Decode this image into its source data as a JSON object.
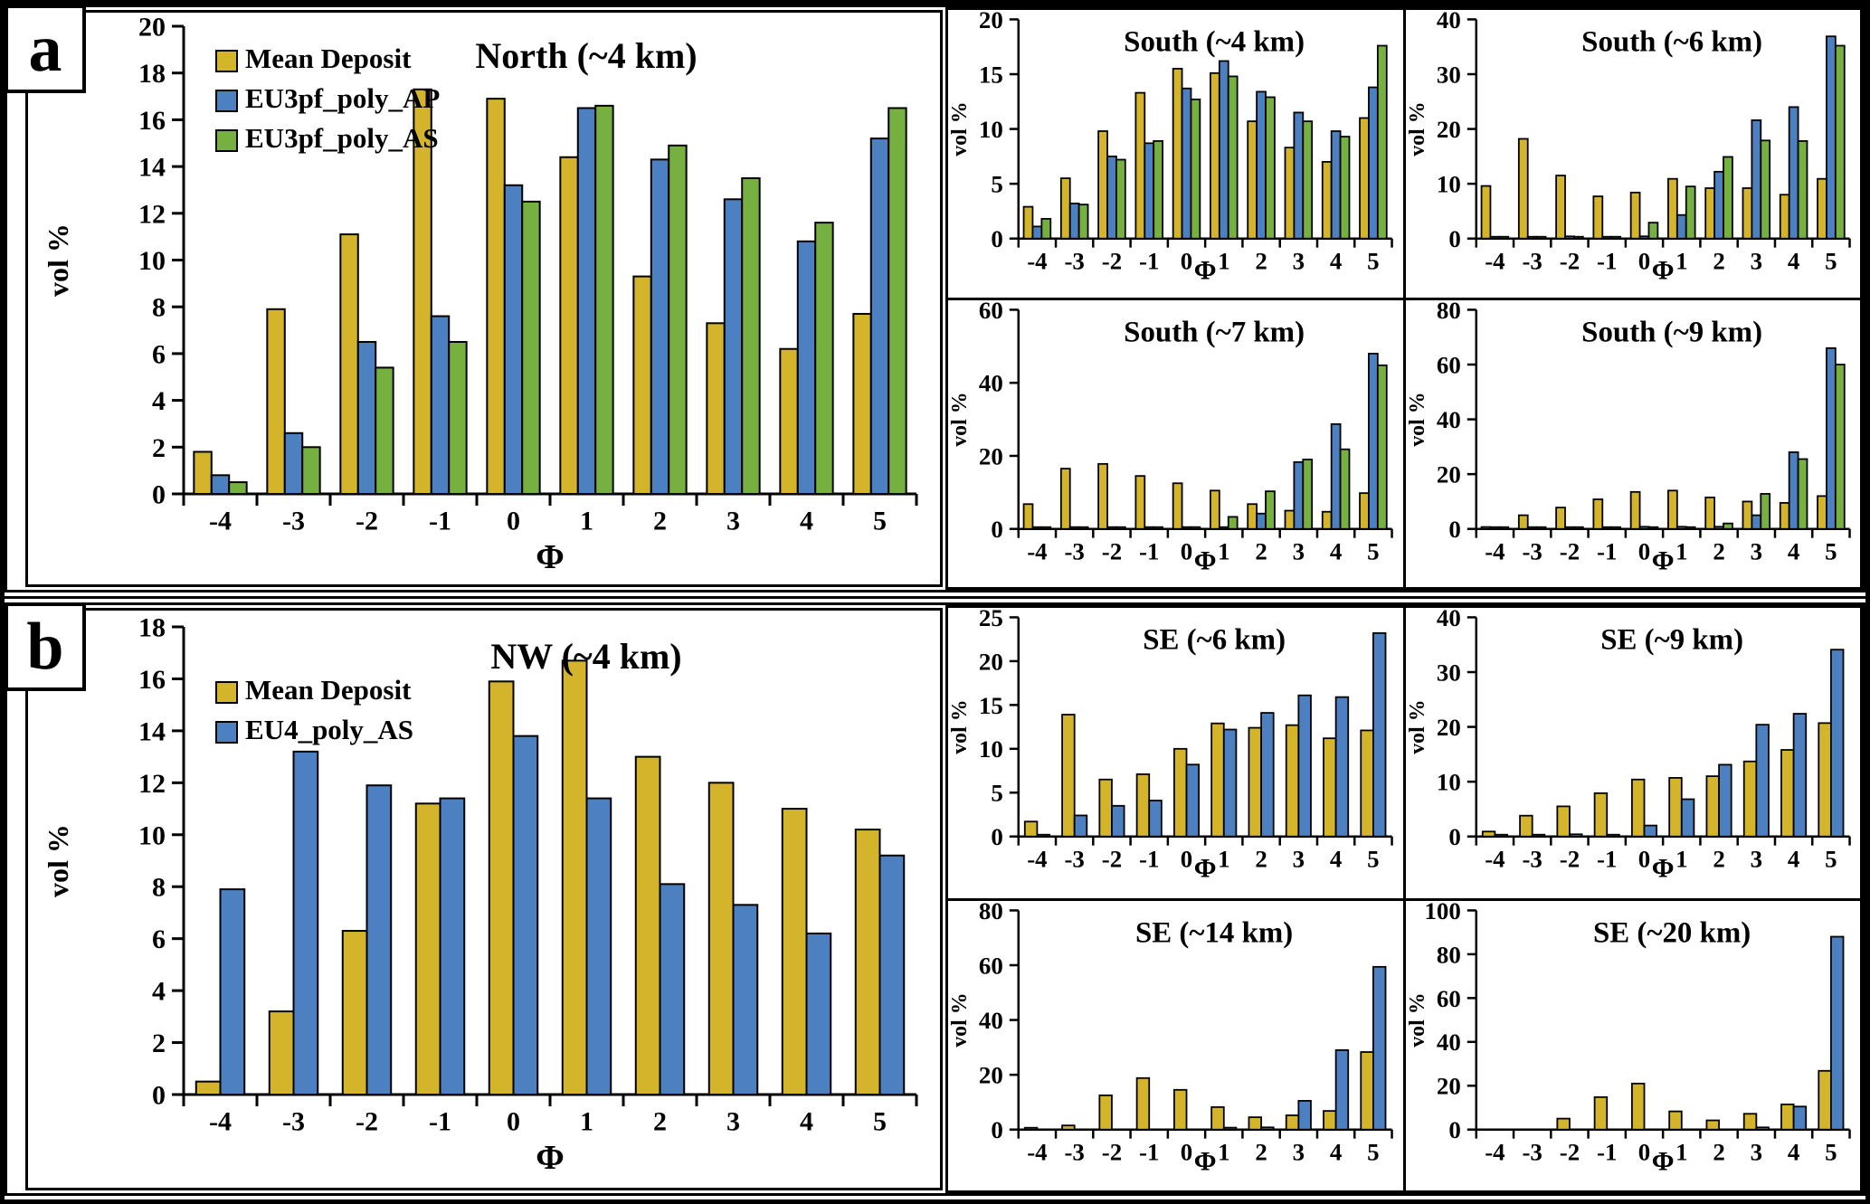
{
  "panels": [
    {
      "label": "a"
    },
    {
      "label": "b"
    }
  ],
  "colors": {
    "mean_deposit": "#d3b42b",
    "eu3pf_poly_ap": "#4c80c0",
    "eu3pf_poly_as": "#76b041",
    "eu4_poly_as": "#4c80c0",
    "axis": "#000000"
  },
  "phi_categories": [
    "-4",
    "-3",
    "-2",
    "-1",
    "0",
    "1",
    "2",
    "3",
    "4",
    "5"
  ],
  "chart_data": [
    {
      "type": "bar",
      "panel": "a",
      "slot": "main",
      "title": "North (~4 km)",
      "ylabel": "vol %",
      "xlabel": "Φ",
      "ylim": [
        0,
        20
      ],
      "ystep": 2,
      "grid": false,
      "legend": true,
      "legend_position": "top-left",
      "categories": [
        "-4",
        "-3",
        "-2",
        "-1",
        "0",
        "1",
        "2",
        "3",
        "4",
        "5"
      ],
      "series": [
        {
          "name": "Mean Deposit",
          "color_key": "mean_deposit",
          "values": [
            1.8,
            7.9,
            11.1,
            17.3,
            16.9,
            14.4,
            9.3,
            7.3,
            6.2,
            7.7
          ]
        },
        {
          "name": "EU3pf_poly_AP",
          "color_key": "eu3pf_poly_ap",
          "values": [
            0.8,
            2.6,
            6.5,
            7.6,
            13.2,
            16.5,
            14.3,
            12.6,
            10.8,
            15.2
          ]
        },
        {
          "name": "EU3pf_poly_AS",
          "color_key": "eu3pf_poly_as",
          "values": [
            0.5,
            2.0,
            5.4,
            6.5,
            12.5,
            16.6,
            14.9,
            13.5,
            11.6,
            16.5
          ]
        }
      ]
    },
    {
      "type": "bar",
      "panel": "a",
      "slot": "top-left",
      "title": "South (~4 km)",
      "ylabel": "vol %",
      "xlabel": "Φ",
      "ylim": [
        0,
        20
      ],
      "ystep": 5,
      "grid": false,
      "legend": false,
      "categories": [
        "-4",
        "-3",
        "-2",
        "-1",
        "0",
        "1",
        "2",
        "3",
        "4",
        "5"
      ],
      "series": [
        {
          "name": "Mean Deposit",
          "color_key": "mean_deposit",
          "values": [
            2.9,
            5.5,
            9.8,
            13.3,
            15.5,
            15.1,
            10.7,
            8.3,
            7.0,
            11.0
          ]
        },
        {
          "name": "EU3pf_poly_AP",
          "color_key": "eu3pf_poly_ap",
          "values": [
            1.1,
            3.2,
            7.5,
            8.7,
            13.7,
            16.2,
            13.4,
            11.5,
            9.8,
            13.8
          ]
        },
        {
          "name": "EU3pf_poly_AS",
          "color_key": "eu3pf_poly_as",
          "values": [
            1.8,
            3.1,
            7.2,
            8.9,
            12.7,
            14.8,
            12.9,
            10.7,
            9.3,
            17.6
          ]
        }
      ]
    },
    {
      "type": "bar",
      "panel": "a",
      "slot": "top-right",
      "title": "South (~6 km)",
      "ylabel": "vol %",
      "xlabel": "Φ",
      "ylim": [
        0,
        40
      ],
      "ystep": 10,
      "grid": false,
      "legend": false,
      "categories": [
        "-4",
        "-3",
        "-2",
        "-1",
        "0",
        "1",
        "2",
        "3",
        "4",
        "5"
      ],
      "series": [
        {
          "name": "Mean Deposit",
          "color_key": "mean_deposit",
          "values": [
            9.6,
            18.2,
            11.5,
            7.7,
            8.4,
            10.9,
            9.2,
            9.2,
            8.0,
            10.9
          ]
        },
        {
          "name": "EU3pf_poly_AP",
          "color_key": "eu3pf_poly_ap",
          "values": [
            0.3,
            0.3,
            0.4,
            0.3,
            0.4,
            4.3,
            12.2,
            21.6,
            24.0,
            36.9
          ]
        },
        {
          "name": "EU3pf_poly_AS",
          "color_key": "eu3pf_poly_as",
          "values": [
            0.2,
            0.2,
            0.3,
            0.2,
            2.9,
            9.5,
            14.9,
            17.9,
            17.8,
            35.2
          ]
        }
      ]
    },
    {
      "type": "bar",
      "panel": "a",
      "slot": "bottom-left",
      "title": "South (~7 km)",
      "ylabel": "vol %",
      "xlabel": "Φ",
      "ylim": [
        0,
        60
      ],
      "ystep": 20,
      "grid": false,
      "legend": false,
      "categories": [
        "-4",
        "-3",
        "-2",
        "-1",
        "0",
        "1",
        "2",
        "3",
        "4",
        "5"
      ],
      "series": [
        {
          "name": "Mean Deposit",
          "color_key": "mean_deposit",
          "values": [
            6.8,
            16.5,
            17.8,
            14.5,
            12.5,
            10.5,
            6.8,
            5.0,
            4.7,
            9.8
          ]
        },
        {
          "name": "EU3pf_poly_AP",
          "color_key": "eu3pf_poly_ap",
          "values": [
            0.2,
            0.5,
            0.5,
            0.5,
            0.5,
            0.5,
            4.2,
            18.3,
            28.7,
            48.0
          ]
        },
        {
          "name": "EU3pf_poly_AS",
          "color_key": "eu3pf_poly_as",
          "values": [
            0.2,
            0.3,
            0.4,
            0.4,
            0.5,
            3.3,
            10.3,
            19.0,
            21.8,
            44.8
          ]
        }
      ]
    },
    {
      "type": "bar",
      "panel": "a",
      "slot": "bottom-right",
      "title": "South (~9 km)",
      "ylabel": "vol %",
      "xlabel": "Φ",
      "ylim": [
        0,
        80
      ],
      "ystep": 20,
      "grid": false,
      "legend": false,
      "categories": [
        "-4",
        "-3",
        "-2",
        "-1",
        "0",
        "1",
        "2",
        "3",
        "4",
        "5"
      ],
      "series": [
        {
          "name": "Mean Deposit",
          "color_key": "mean_deposit",
          "values": [
            0.7,
            5.0,
            7.8,
            10.8,
            13.5,
            14.0,
            11.5,
            10.0,
            9.5,
            12.0
          ]
        },
        {
          "name": "EU3pf_poly_AP",
          "color_key": "eu3pf_poly_ap",
          "values": [
            0.1,
            0.1,
            0.1,
            0.1,
            0.8,
            0.8,
            0.8,
            5.0,
            28.0,
            66.0
          ]
        },
        {
          "name": "EU3pf_poly_AS",
          "color_key": "eu3pf_poly_as",
          "values": [
            0.1,
            0.1,
            0.1,
            0.1,
            0.2,
            0.3,
            2.0,
            12.8,
            25.5,
            60.0
          ]
        }
      ]
    },
    {
      "type": "bar",
      "panel": "b",
      "slot": "main",
      "title": "NW (~4 km)",
      "ylabel": "vol %",
      "xlabel": "Φ",
      "ylim": [
        0,
        18
      ],
      "ystep": 2,
      "grid": false,
      "legend": true,
      "legend_position": "top-left",
      "categories": [
        "-4",
        "-3",
        "-2",
        "-1",
        "0",
        "1",
        "2",
        "3",
        "4",
        "5"
      ],
      "series": [
        {
          "name": "Mean Deposit",
          "color_key": "mean_deposit",
          "values": [
            0.5,
            3.2,
            6.3,
            11.2,
            15.9,
            16.7,
            13.0,
            12.0,
            11.0,
            10.2
          ]
        },
        {
          "name": "EU4_poly_AS",
          "color_key": "eu4_poly_as",
          "values": [
            7.9,
            13.2,
            11.9,
            11.4,
            13.8,
            11.4,
            8.1,
            7.3,
            6.2,
            9.2
          ]
        }
      ]
    },
    {
      "type": "bar",
      "panel": "b",
      "slot": "top-left",
      "title": "SE (~6 km)",
      "ylabel": "vol %",
      "xlabel": "Φ",
      "ylim": [
        0,
        25
      ],
      "ystep": 5,
      "grid": false,
      "legend": false,
      "categories": [
        "-4",
        "-3",
        "-2",
        "-1",
        "0",
        "1",
        "2",
        "3",
        "4",
        "5"
      ],
      "series": [
        {
          "name": "Mean Deposit",
          "color_key": "mean_deposit",
          "values": [
            1.7,
            13.9,
            6.5,
            7.1,
            10.0,
            12.9,
            12.4,
            12.7,
            11.2,
            12.1
          ]
        },
        {
          "name": "EU4_poly_AS",
          "color_key": "eu4_poly_as",
          "values": [
            0.2,
            2.4,
            3.5,
            4.1,
            8.2,
            12.2,
            14.1,
            16.1,
            15.9,
            23.2
          ]
        }
      ]
    },
    {
      "type": "bar",
      "panel": "b",
      "slot": "top-right",
      "title": "SE (~9 km)",
      "ylabel": "vol %",
      "xlabel": "Φ",
      "ylim": [
        0,
        40
      ],
      "ystep": 10,
      "grid": false,
      "legend": false,
      "categories": [
        "-4",
        "-3",
        "-2",
        "-1",
        "0",
        "1",
        "2",
        "3",
        "4",
        "5"
      ],
      "series": [
        {
          "name": "Mean Deposit",
          "color_key": "mean_deposit",
          "values": [
            0.9,
            3.8,
            5.5,
            7.9,
            10.4,
            10.7,
            11.0,
            13.7,
            15.8,
            20.7
          ]
        },
        {
          "name": "EU4_poly_AS",
          "color_key": "eu4_poly_as",
          "values": [
            0.3,
            0.3,
            0.4,
            0.3,
            2.0,
            6.8,
            13.1,
            20.4,
            22.4,
            34.1
          ]
        }
      ]
    },
    {
      "type": "bar",
      "panel": "b",
      "slot": "bottom-left",
      "title": "SE (~14 km)",
      "ylabel": "vol %",
      "xlabel": "Φ",
      "ylim": [
        0,
        80
      ],
      "ystep": 20,
      "grid": false,
      "legend": false,
      "categories": [
        "-4",
        "-3",
        "-2",
        "-1",
        "0",
        "1",
        "2",
        "3",
        "4",
        "5"
      ],
      "series": [
        {
          "name": "Mean Deposit",
          "color_key": "mean_deposit",
          "values": [
            0.2,
            1.5,
            12.5,
            18.8,
            14.5,
            8.2,
            4.5,
            5.2,
            6.8,
            28.3
          ]
        },
        {
          "name": "EU4_poly_AS",
          "color_key": "eu4_poly_as",
          "values": [
            0,
            0,
            0,
            0,
            0,
            0.7,
            0.8,
            10.5,
            29.0,
            59.4
          ]
        }
      ]
    },
    {
      "type": "bar",
      "panel": "b",
      "slot": "bottom-right",
      "title": "SE (~20 km)",
      "ylabel": "vol %",
      "xlabel": "Φ",
      "ylim": [
        0,
        100
      ],
      "ystep": 20,
      "grid": false,
      "legend": false,
      "categories": [
        "-4",
        "-3",
        "-2",
        "-1",
        "0",
        "1",
        "2",
        "3",
        "4",
        "5"
      ],
      "series": [
        {
          "name": "Mean Deposit",
          "color_key": "mean_deposit",
          "values": [
            0,
            0,
            5.0,
            14.8,
            21.0,
            8.3,
            4.2,
            7.2,
            11.5,
            26.8
          ]
        },
        {
          "name": "EU4_poly_AS",
          "color_key": "eu4_poly_as",
          "values": [
            0,
            0,
            0,
            0,
            0,
            0,
            0,
            1.0,
            10.5,
            88.0
          ]
        }
      ]
    }
  ]
}
